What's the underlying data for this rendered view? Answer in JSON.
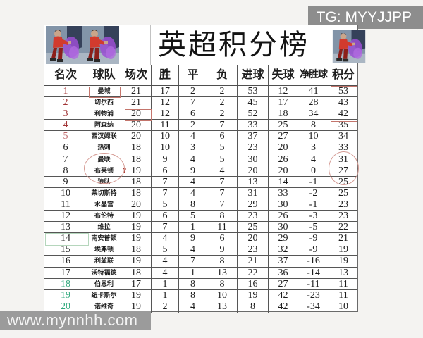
{
  "watermarks": {
    "telegram": "TG: MYYJJPP",
    "site": "www.mynnhh.com"
  },
  "colors": {
    "rank_top4": "#a23536",
    "rank_fifth": "#bf6a6d",
    "rank_releg": "#2ea97c",
    "annotation_red": "#c4756c",
    "annotation_green": "#b5d6bc",
    "watermark_bg": "#8d8d8d"
  },
  "icons": {
    "player_image": "table-tennis-player-illustration",
    "up_arrow": "↑"
  },
  "chart_data": {
    "type": "table",
    "title": "英超积分榜",
    "columns": [
      "名次",
      "球队",
      "场次",
      "胜",
      "平",
      "负",
      "进球",
      "失球",
      "净胜球",
      "积分"
    ],
    "rows": [
      {
        "rank": "1",
        "team": "曼城",
        "played": "21",
        "win": "17",
        "draw": "2",
        "loss": "2",
        "gf": "53",
        "ga": "12",
        "gd": "41",
        "pts": "53",
        "rank_color": "top4",
        "team_boxed": true
      },
      {
        "rank": "2",
        "team": "切尔西",
        "played": "21",
        "win": "12",
        "draw": "7",
        "loss": "2",
        "gf": "45",
        "ga": "17",
        "gd": "28",
        "pts": "43",
        "rank_color": "top4"
      },
      {
        "rank": "3",
        "team": "利物浦",
        "played": "20",
        "win": "12",
        "draw": "6",
        "loss": "2",
        "gf": "52",
        "ga": "18",
        "gd": "34",
        "pts": "42",
        "rank_color": "top4",
        "played_boxed": true
      },
      {
        "rank": "4",
        "team": "阿森纳",
        "played": "20",
        "win": "11",
        "draw": "2",
        "loss": "7",
        "gf": "33",
        "ga": "25",
        "gd": "8",
        "pts": "35",
        "rank_color": "top4"
      },
      {
        "rank": "5",
        "team": "西汉姆联",
        "played": "20",
        "win": "10",
        "draw": "4",
        "loss": "6",
        "gf": "37",
        "ga": "27",
        "gd": "10",
        "pts": "34",
        "rank_color": "fifth"
      },
      {
        "rank": "6",
        "team": "热刺",
        "played": "18",
        "win": "10",
        "draw": "3",
        "loss": "5",
        "gf": "23",
        "ga": "20",
        "gd": "3",
        "pts": "33",
        "rank_color": "normal"
      },
      {
        "rank": "7",
        "team": "曼联",
        "played": "18",
        "win": "9",
        "draw": "4",
        "loss": "5",
        "gf": "30",
        "ga": "26",
        "gd": "4",
        "pts": "31",
        "rank_color": "normal"
      },
      {
        "rank": "8",
        "team": "布莱顿",
        "played": "19",
        "win": "6",
        "draw": "9",
        "loss": "4",
        "gf": "20",
        "ga": "20",
        "gd": "0",
        "pts": "27",
        "rank_color": "normal",
        "arrow_up": true
      },
      {
        "rank": "9",
        "team": "狼队",
        "played": "18",
        "win": "7",
        "draw": "4",
        "loss": "7",
        "gf": "13",
        "ga": "14",
        "gd": "-1",
        "pts": "25",
        "rank_color": "normal"
      },
      {
        "rank": "10",
        "team": "莱切斯特",
        "played": "18",
        "win": "7",
        "draw": "4",
        "loss": "7",
        "gf": "31",
        "ga": "33",
        "gd": "-2",
        "pts": "25",
        "rank_color": "normal"
      },
      {
        "rank": "11",
        "team": "水晶宫",
        "played": "20",
        "win": "5",
        "draw": "8",
        "loss": "7",
        "gf": "29",
        "ga": "30",
        "gd": "-1",
        "pts": "23",
        "rank_color": "normal"
      },
      {
        "rank": "12",
        "team": "布伦特",
        "played": "19",
        "win": "6",
        "draw": "5",
        "loss": "8",
        "gf": "23",
        "ga": "26",
        "gd": "-3",
        "pts": "23",
        "rank_color": "normal"
      },
      {
        "rank": "13",
        "team": "维拉",
        "played": "19",
        "win": "7",
        "draw": "1",
        "loss": "11",
        "gf": "25",
        "ga": "30",
        "gd": "-5",
        "pts": "22",
        "rank_color": "normal"
      },
      {
        "rank": "14",
        "team": "南安普顿",
        "played": "19",
        "win": "4",
        "draw": "9",
        "loss": "6",
        "gf": "20",
        "ga": "29",
        "gd": "-9",
        "pts": "21",
        "rank_color": "normal",
        "rank_boxed_green": true
      },
      {
        "rank": "15",
        "team": "埃弗顿",
        "played": "18",
        "win": "5",
        "draw": "4",
        "loss": "9",
        "gf": "23",
        "ga": "32",
        "gd": "-9",
        "pts": "19",
        "rank_color": "normal"
      },
      {
        "rank": "16",
        "team": "利兹联",
        "played": "19",
        "win": "4",
        "draw": "7",
        "loss": "8",
        "gf": "21",
        "ga": "37",
        "gd": "-16",
        "pts": "19",
        "rank_color": "normal"
      },
      {
        "rank": "17",
        "team": "沃特福德",
        "played": "18",
        "win": "4",
        "draw": "1",
        "loss": "13",
        "gf": "22",
        "ga": "36",
        "gd": "-14",
        "pts": "13",
        "rank_color": "normal"
      },
      {
        "rank": "18",
        "team": "伯恩利",
        "played": "17",
        "win": "1",
        "draw": "8",
        "loss": "8",
        "gf": "16",
        "ga": "27",
        "gd": "-11",
        "pts": "11",
        "rank_color": "releg"
      },
      {
        "rank": "19",
        "team": "纽卡斯尔",
        "played": "19",
        "win": "1",
        "draw": "8",
        "loss": "10",
        "gf": "19",
        "ga": "42",
        "gd": "-23",
        "pts": "11",
        "rank_color": "releg"
      },
      {
        "rank": "20",
        "team": "诺维奇",
        "played": "19",
        "win": "2",
        "draw": "4",
        "loss": "13",
        "gf": "8",
        "ga": "42",
        "gd": "-34",
        "pts": "10",
        "rank_color": "releg"
      }
    ],
    "annotations": [
      "red box around team 曼城 (row 1)",
      "red box around played 20 (row 3)",
      "red box around points 53/43/42 (rows 1-3)",
      "red ellipse around teams 曼联/布莱顿 (rows 7-8)",
      "red ellipse around points 31/27 (rows 7-8)",
      "red up arrow beside 布莱顿 (row 8)",
      "green box around rank 14"
    ]
  }
}
